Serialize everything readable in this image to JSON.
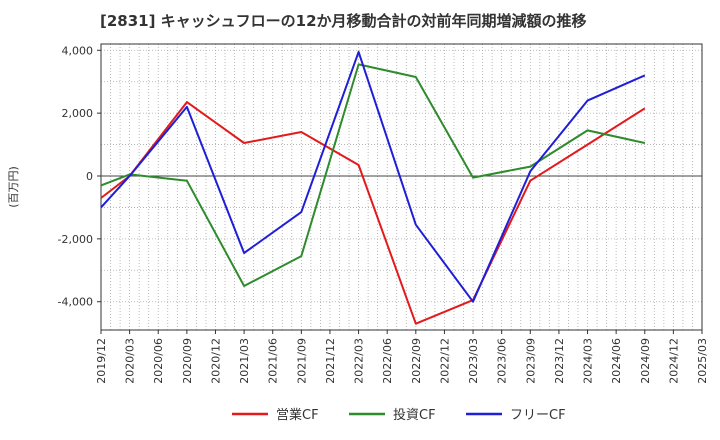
{
  "chart_data": {
    "type": "line",
    "title": "[2831]  キャッシュフローの12か月移動合計の対前年同期増減額の推移",
    "ylabel": "(百万円)",
    "ylim": [
      -4900,
      4200
    ],
    "yticks": [
      4000,
      2000,
      0,
      -2000,
      -4000
    ],
    "ytick_labels": [
      "4,000",
      "2,000",
      "0",
      "-2,000",
      "-4,000"
    ],
    "categories": [
      "2019/12",
      "2020/03",
      "2020/06",
      "2020/09",
      "2020/12",
      "2021/03",
      "2021/06",
      "2021/09",
      "2021/12",
      "2022/03",
      "2022/06",
      "2022/09",
      "2022/12",
      "2023/03",
      "2023/06",
      "2023/09",
      "2023/12",
      "2024/03",
      "2024/06",
      "2024/09",
      "2024/12",
      "2025/03"
    ],
    "grid": true,
    "legend_position": "bottom",
    "series": [
      {
        "name": "営業CF",
        "color": "#e31a1c",
        "values": [
          -700,
          0,
          null,
          2350,
          null,
          1050,
          null,
          1400,
          null,
          350,
          null,
          -4700,
          null,
          -3950,
          null,
          -150,
          null,
          1000,
          null,
          2150,
          null,
          null
        ]
      },
      {
        "name": "投資CF",
        "color": "#2e8b2e",
        "values": [
          -300,
          50,
          null,
          -150,
          null,
          -3500,
          null,
          -2550,
          null,
          3550,
          null,
          3150,
          null,
          -50,
          null,
          300,
          null,
          1450,
          null,
          1050,
          null,
          null
        ]
      },
      {
        "name": "フリーCF",
        "color": "#1f1fd8",
        "values": [
          -1000,
          0,
          null,
          2200,
          null,
          -2450,
          null,
          -1150,
          null,
          3950,
          null,
          -1550,
          null,
          -4000,
          null,
          150,
          null,
          2400,
          null,
          3200,
          null,
          null
        ]
      }
    ]
  }
}
